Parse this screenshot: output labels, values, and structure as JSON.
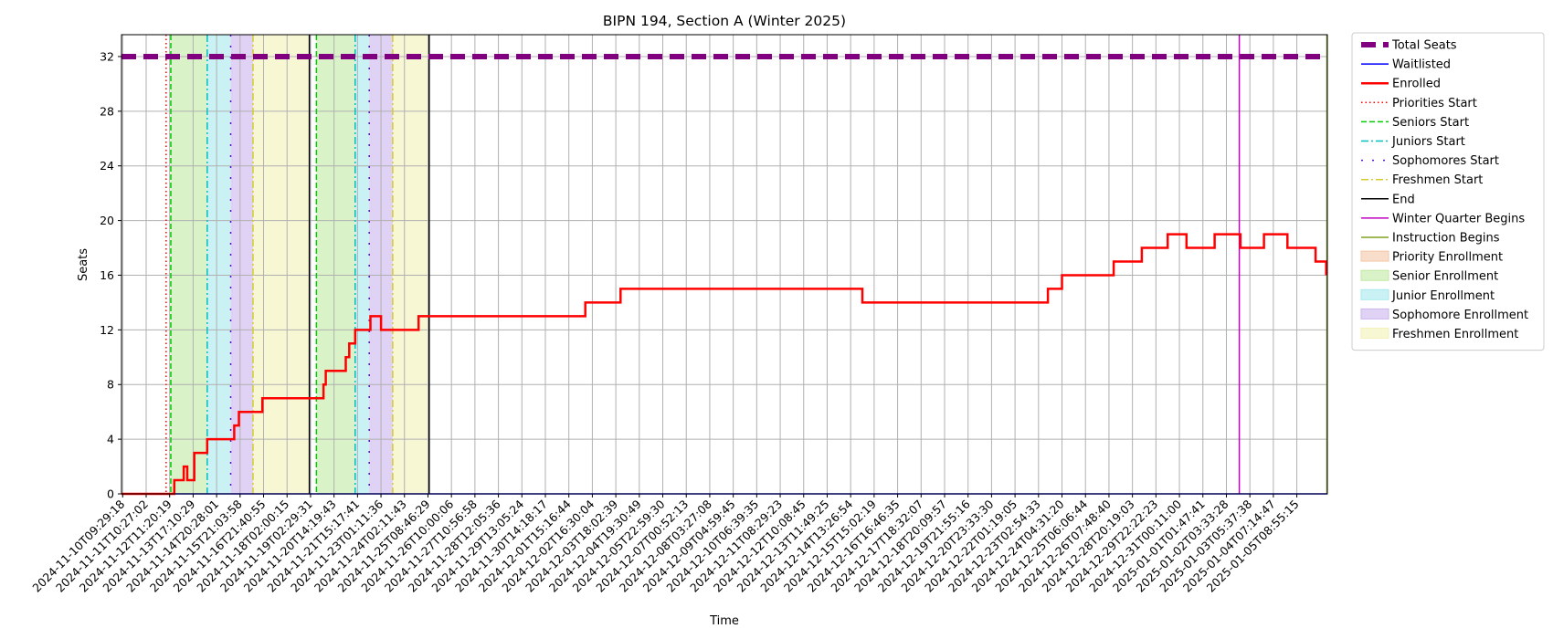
{
  "chart_data": {
    "type": "line",
    "title": "BIPN 194, Section A (Winter 2025)",
    "xlabel": "Time",
    "ylabel": "Seats",
    "ylim": [
      0,
      33.6
    ],
    "yticks": [
      0,
      4,
      8,
      12,
      16,
      20,
      24,
      28,
      32
    ],
    "xlim": [
      -0.05,
      51.3
    ],
    "grid": true,
    "legend_position": "outside-right",
    "x_tick_labels": [
      "2024-11-10T09:29:18",
      "2024-11-11T10:27:02",
      "2024-11-12T11:20:19",
      "2024-11-13T17:10:29",
      "2024-11-14T20:28:01",
      "2024-11-15T21:03:58",
      "2024-11-16T21:40:55",
      "2024-11-18T02:00:15",
      "2024-11-19T02:29:31",
      "2024-11-20T14:19:43",
      "2024-11-21T15:17:41",
      "2024-11-23T01:11:36",
      "2024-11-24T02:11:43",
      "2024-11-25T08:46:29",
      "2024-11-26T10:00:06",
      "2024-11-27T10:56:58",
      "2024-11-28T12:05:36",
      "2024-11-29T13:05:24",
      "2024-11-30T14:18:17",
      "2024-12-01T15:16:44",
      "2024-12-02T16:30:04",
      "2024-12-03T18:02:39",
      "2024-12-04T19:30:49",
      "2024-12-05T22:59:30",
      "2024-12-07T00:52:13",
      "2024-12-08T03:27:08",
      "2024-12-09T04:59:45",
      "2024-12-10T06:39:35",
      "2024-12-11T08:29:23",
      "2024-12-12T10:08:45",
      "2024-12-13T11:49:25",
      "2024-12-14T13:26:54",
      "2024-12-15T15:02:19",
      "2024-12-16T16:46:35",
      "2024-12-17T18:32:07",
      "2024-12-18T20:09:57",
      "2024-12-19T21:55:16",
      "2024-12-20T23:33:30",
      "2024-12-22T01:19:05",
      "2024-12-23T02:54:33",
      "2024-12-24T04:31:20",
      "2024-12-25T06:06:44",
      "2024-12-26T07:48:40",
      "2024-12-28T20:19:03",
      "2024-12-29T22:22:23",
      "2024-12-31T00:11:00",
      "2025-01-01T01:47:41",
      "2025-01-02T03:33:28",
      "2025-01-03T05:37:38",
      "2025-01-04T07:14:47",
      "2025-01-05T08:55:15"
    ],
    "series": [
      {
        "name": "Total Seats",
        "color": "#800080",
        "style": "dashed-thick",
        "x": [
          -0.05,
          51.3
        ],
        "y": [
          32,
          32
        ]
      },
      {
        "name": "Waitlisted",
        "color": "#0000ff",
        "style": "solid",
        "x": [
          -0.05,
          51.3
        ],
        "y": [
          0,
          0
        ]
      },
      {
        "name": "Enrolled",
        "color": "#ff0000",
        "style": "step",
        "x": [
          -0.05,
          2.05,
          2.2,
          2.45,
          2.6,
          2.75,
          3.0,
          3.05,
          3.25,
          3.6,
          3.7,
          4.0,
          4.65,
          4.75,
          4.95,
          5.05,
          5.55,
          5.85,
          5.95,
          6.25,
          6.6,
          8.3,
          8.55,
          8.65,
          9.15,
          9.25,
          9.5,
          9.65,
          9.75,
          9.9,
          10.0,
          10.05,
          10.5,
          10.55,
          11.0,
          11.05,
          12.5,
          12.6,
          13.1,
          13.3,
          19.5,
          19.7,
          21.0,
          21.2,
          31.5,
          31.7,
          39.4,
          39.6,
          39.8,
          40.0,
          42.0,
          42.2,
          42.4,
          42.6,
          43.0,
          43.4,
          44.5,
          44.7,
          45.3,
          45.5,
          46.5,
          46.7,
          47.6,
          47.8,
          48.6,
          48.8,
          49.6,
          49.8,
          50.8,
          51.0,
          51.25
        ],
        "y": [
          0,
          0,
          1,
          1,
          2,
          1,
          1,
          3,
          3,
          4,
          4,
          4,
          4,
          5,
          6,
          6,
          6,
          6,
          7,
          7,
          7,
          7,
          8,
          9,
          9,
          9,
          10,
          11,
          11,
          12,
          12,
          12,
          12,
          13,
          12,
          12,
          12,
          13,
          13,
          13,
          13,
          14,
          14,
          15,
          14,
          14,
          15,
          15,
          15,
          16,
          16,
          17,
          17,
          17,
          17,
          18,
          19,
          19,
          18,
          18,
          19,
          19,
          18,
          18,
          19,
          19,
          18,
          18,
          17,
          17,
          16
        ]
      }
    ],
    "vertical_lines": [
      {
        "name": "Priorities Start",
        "color": "#ff0000",
        "style": "dotted",
        "x": [
          1.85
        ]
      },
      {
        "name": "Seniors Start",
        "color": "#00cc00",
        "style": "dashed",
        "x": [
          2.05,
          8.25
        ]
      },
      {
        "name": "Juniors Start",
        "color": "#00bfbf",
        "style": "dashdot",
        "x": [
          3.6,
          9.9
        ]
      },
      {
        "name": "Sophomores Start",
        "color": "#5a0fd0",
        "style": "loosedot",
        "x": [
          4.6,
          10.5
        ]
      },
      {
        "name": "Freshmen Start",
        "color": "#d4cc33",
        "style": "dashdot",
        "x": [
          5.55,
          11.5
        ]
      },
      {
        "name": "End",
        "color": "#000000",
        "style": "solid",
        "x": [
          7.95,
          13.05
        ]
      },
      {
        "name": "Winter Quarter Begins",
        "color": "#c000c0",
        "style": "solid",
        "x": [
          47.55
        ]
      },
      {
        "name": "Instruction Begins",
        "color": "#80a020",
        "style": "solid",
        "x": [
          51.28
        ]
      }
    ],
    "shaded_regions": [
      {
        "name": "Priority Enrollment",
        "color": "#f4c7a8",
        "spans": []
      },
      {
        "name": "Senior Enrollment",
        "color": "#bfeaa3",
        "spans": [
          [
            2.05,
            3.6
          ],
          [
            8.25,
            9.9
          ]
        ]
      },
      {
        "name": "Junior Enrollment",
        "color": "#a6e9ee",
        "spans": [
          [
            3.6,
            4.6
          ],
          [
            9.9,
            10.5
          ]
        ]
      },
      {
        "name": "Sophomore Enrollment",
        "color": "#cbb4ec",
        "spans": [
          [
            4.6,
            5.55
          ],
          [
            10.5,
            11.5
          ]
        ]
      },
      {
        "name": "Freshmen Enrollment",
        "color": "#f4f2b8",
        "spans": [
          [
            5.55,
            7.95
          ],
          [
            11.5,
            13.05
          ]
        ]
      }
    ],
    "legend": [
      {
        "label": "Total Seats",
        "kind": "line",
        "color": "#800080",
        "style": "dashed-thick"
      },
      {
        "label": "Waitlisted",
        "kind": "line",
        "color": "#0000ff",
        "style": "solid"
      },
      {
        "label": "Enrolled",
        "kind": "line",
        "color": "#ff0000",
        "style": "solid-thick"
      },
      {
        "label": "Priorities Start",
        "kind": "line",
        "color": "#ff0000",
        "style": "dotted"
      },
      {
        "label": "Seniors Start",
        "kind": "line",
        "color": "#00cc00",
        "style": "dashed"
      },
      {
        "label": "Juniors Start",
        "kind": "line",
        "color": "#00bfbf",
        "style": "dashdot"
      },
      {
        "label": "Sophomores Start",
        "kind": "line",
        "color": "#5a0fd0",
        "style": "loosedot"
      },
      {
        "label": "Freshmen Start",
        "kind": "line",
        "color": "#d4cc33",
        "style": "dashdot"
      },
      {
        "label": "End",
        "kind": "line",
        "color": "#000000",
        "style": "solid"
      },
      {
        "label": "Winter Quarter Begins",
        "kind": "line",
        "color": "#c000c0",
        "style": "solid"
      },
      {
        "label": "Instruction Begins",
        "kind": "line",
        "color": "#80a020",
        "style": "solid"
      },
      {
        "label": "Priority Enrollment",
        "kind": "patch",
        "color": "#f4c7a8"
      },
      {
        "label": "Senior Enrollment",
        "kind": "patch",
        "color": "#bfeaa3"
      },
      {
        "label": "Junior Enrollment",
        "kind": "patch",
        "color": "#a6e9ee"
      },
      {
        "label": "Sophomore Enrollment",
        "kind": "patch",
        "color": "#cbb4ec"
      },
      {
        "label": "Freshmen Enrollment",
        "kind": "patch",
        "color": "#f4f2b8"
      }
    ]
  }
}
